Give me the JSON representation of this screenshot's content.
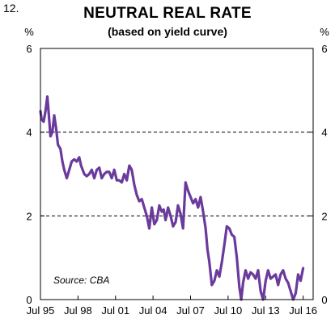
{
  "figure_number": "12.",
  "chart_data": {
    "type": "line",
    "title": "NEUTRAL REAL RATE",
    "subtitle": "(based on yield curve)",
    "ylabel_left": "%",
    "ylabel_right": "%",
    "ylim": [
      0,
      6
    ],
    "yticks": [
      0,
      2,
      4,
      6
    ],
    "xtick_labels": [
      "Jul 95",
      "Jul 98",
      "Jul 01",
      "Jul 04",
      "Jul 07",
      "Jul 10",
      "Jul 13",
      "Jul 16"
    ],
    "xlim": [
      1995.5,
      2017.3
    ],
    "xticks": [
      1995.5,
      1998.5,
      2001.5,
      2004.5,
      2007.5,
      2010.5,
      2013.5,
      2016.5
    ],
    "gridlines": [
      2,
      4
    ],
    "grid_style": "dashed",
    "annotation": "Source: CBA",
    "series_color": "#6a3a9c",
    "x": [
      1995.5,
      1995.6,
      1995.75,
      1995.9,
      1996.05,
      1996.15,
      1996.3,
      1996.45,
      1996.6,
      1996.75,
      1996.9,
      1997.1,
      1997.25,
      1997.4,
      1997.6,
      1997.8,
      1998.0,
      1998.2,
      1998.4,
      1998.6,
      1998.75,
      1999.0,
      1999.2,
      1999.4,
      1999.6,
      1999.8,
      2000.0,
      2000.2,
      2000.4,
      2000.6,
      2000.8,
      2001.0,
      2001.2,
      2001.4,
      2001.6,
      2001.8,
      2002.0,
      2002.2,
      2002.4,
      2002.6,
      2002.8,
      2003.0,
      2003.2,
      2003.4,
      2003.6,
      2003.8,
      2004.0,
      2004.2,
      2004.4,
      2004.6,
      2004.8,
      2005.0,
      2005.2,
      2005.35,
      2005.5,
      2005.7,
      2005.9,
      2006.1,
      2006.3,
      2006.5,
      2006.7,
      2006.9,
      2007.1,
      2007.3,
      2007.5,
      2007.7,
      2007.9,
      2008.1,
      2008.3,
      2008.5,
      2008.7,
      2008.85,
      2009.0,
      2009.2,
      2009.4,
      2009.6,
      2009.8,
      2010.0,
      2010.2,
      2010.4,
      2010.6,
      2010.8,
      2011.0,
      2011.2,
      2011.4,
      2011.55,
      2011.7,
      2011.9,
      2012.1,
      2012.3,
      2012.5,
      2012.7,
      2012.9,
      2013.1,
      2013.3,
      2013.5,
      2013.7,
      2013.9,
      2014.1,
      2014.3,
      2014.5,
      2014.7,
      2014.9,
      2015.1,
      2015.3,
      2015.5,
      2015.7,
      2015.9,
      2016.1,
      2016.3,
      2016.5
    ],
    "values": [
      4.5,
      4.3,
      4.25,
      4.5,
      4.85,
      4.5,
      3.9,
      4.0,
      4.4,
      4.1,
      3.7,
      3.6,
      3.3,
      3.1,
      2.9,
      3.1,
      3.3,
      3.35,
      3.3,
      3.4,
      3.2,
      3.0,
      2.95,
      3.0,
      3.1,
      2.9,
      3.1,
      3.15,
      2.9,
      3.0,
      3.05,
      3.05,
      2.9,
      3.1,
      2.85,
      2.85,
      2.8,
      3.0,
      2.85,
      3.2,
      3.1,
      2.75,
      2.5,
      2.35,
      2.4,
      2.2,
      2.0,
      1.7,
      2.2,
      1.8,
      1.9,
      2.25,
      2.1,
      2.15,
      1.9,
      2.2,
      2.0,
      1.75,
      1.85,
      2.25,
      2.05,
      1.7,
      2.8,
      2.6,
      2.45,
      2.3,
      2.4,
      2.2,
      2.45,
      2.1,
      1.7,
      1.2,
      0.9,
      0.35,
      0.45,
      0.7,
      0.55,
      0.9,
      1.3,
      1.75,
      1.7,
      1.55,
      1.5,
      1.0,
      0.3,
      0.0,
      0.4,
      0.7,
      0.5,
      0.65,
      0.6,
      0.5,
      0.7,
      0.2,
      0.0,
      0.45,
      0.7,
      0.5,
      0.55,
      0.6,
      0.35,
      0.6,
      0.7,
      0.5,
      0.4,
      0.2,
      0.0,
      0.15,
      0.6,
      0.45,
      0.75
    ]
  }
}
